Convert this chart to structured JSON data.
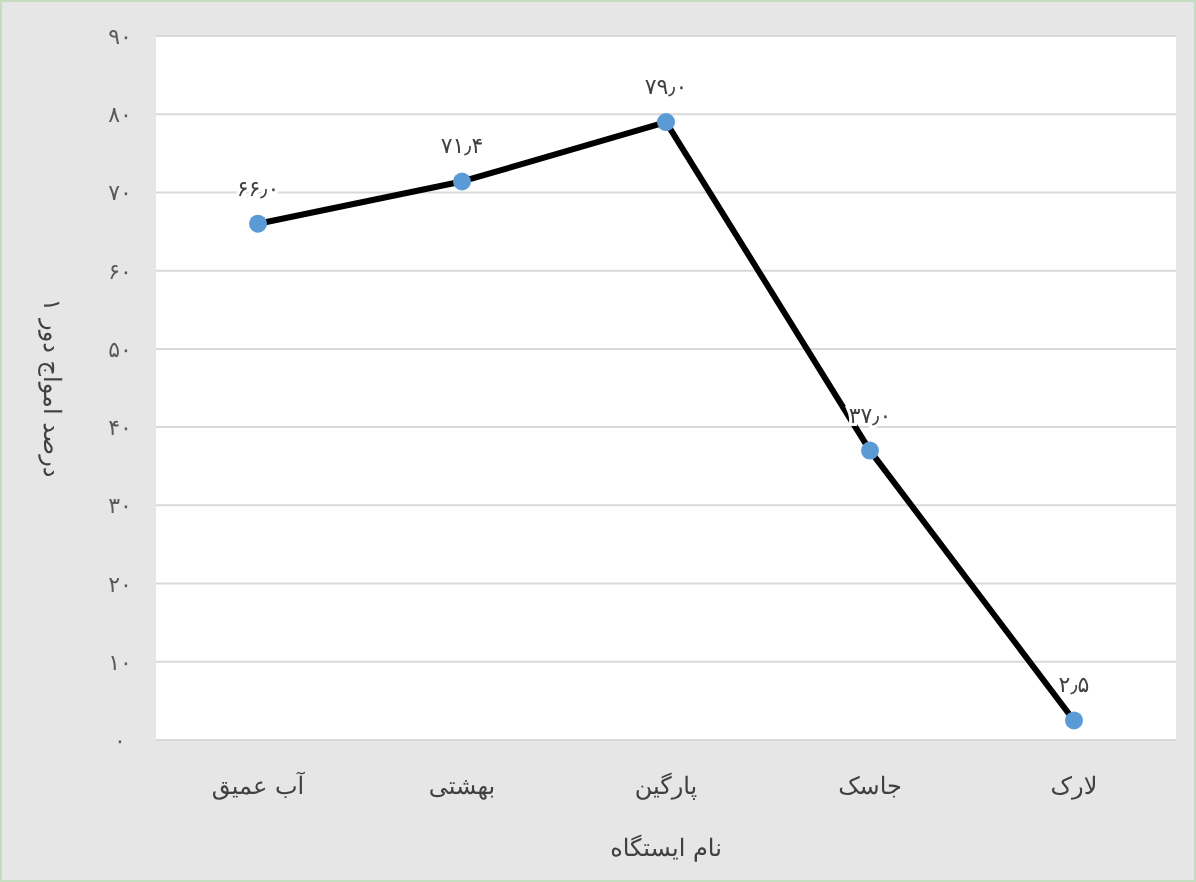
{
  "chart_data": {
    "type": "line",
    "xlabel": "نام ایستگاه",
    "ylabel": "درصد امواج دور ۱",
    "categories": [
      "آب عمیق",
      "بهشتی",
      "پارگین",
      "جاسک",
      "لارک"
    ],
    "series": [
      {
        "color": "#000000",
        "values": [
          66.0,
          71.4,
          79.0,
          37.0,
          2.5
        ],
        "value_labels": [
          "۶۶٫۰",
          "۷۱٫۴",
          "۷۹٫۰",
          "۳۷٫۰",
          "۲٫۵"
        ]
      }
    ],
    "marker": "circle",
    "grid": "y",
    "ylim": [
      0,
      90
    ],
    "yticks": [
      {
        "value": 0,
        "label": "۰"
      },
      {
        "value": 10,
        "label": "۱۰"
      },
      {
        "value": 20,
        "label": "۲۰"
      },
      {
        "value": 30,
        "label": "۳۰"
      },
      {
        "value": 40,
        "label": "۴۰"
      },
      {
        "value": 50,
        "label": "۵۰"
      },
      {
        "value": 60,
        "label": "۶۰"
      },
      {
        "value": 70,
        "label": "۷۰"
      },
      {
        "value": 80,
        "label": "۸۰"
      },
      {
        "value": 90,
        "label": "۹۰"
      }
    ]
  }
}
